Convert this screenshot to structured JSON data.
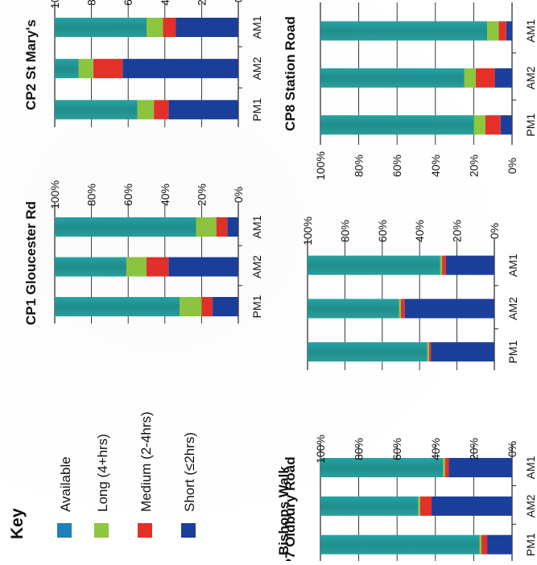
{
  "key": {
    "title": "Key",
    "items": [
      {
        "label": "Available",
        "color": "#1f7fb8"
      },
      {
        "label": "Long  (4+hrs)",
        "color": "#8dc63f"
      },
      {
        "label": "Medium (2-4hrs)",
        "color": "#e3312a"
      },
      {
        "label": "Short (≤2hrs)",
        "color": "#1b3f9a"
      }
    ]
  },
  "chart_data": [
    {
      "type": "bar",
      "stacked": true,
      "title": "CP1 Gloucester Rd",
      "categories": [
        "AM1",
        "AM2",
        "PM1"
      ],
      "ylim": [
        0,
        100
      ],
      "yticks": [
        "0%",
        "20%",
        "40%",
        "60%",
        "80%",
        "100%"
      ],
      "series": [
        {
          "name": "Short (≤2hrs)",
          "color": "#1b3f9a",
          "values": [
            6,
            38,
            14
          ]
        },
        {
          "name": "Medium (2-4hrs)",
          "color": "#e3312a",
          "values": [
            6,
            12,
            6
          ]
        },
        {
          "name": "Long  (4+hrs)",
          "color": "#8dc63f",
          "values": [
            11,
            11,
            12
          ]
        },
        {
          "name": "Available",
          "color": "#1f7fb8",
          "values": [
            77,
            39,
            68
          ]
        }
      ]
    },
    {
      "type": "bar",
      "stacked": true,
      "title": "CP2 St Mary's",
      "categories": [
        "AM1",
        "AM2",
        "PM1"
      ],
      "ylim": [
        0,
        100
      ],
      "yticks": [
        "0%",
        "20%",
        "40%",
        "60%",
        "80%",
        "100%"
      ],
      "series": [
        {
          "name": "Short (≤2hrs)",
          "color": "#1b3f9a",
          "values": [
            34,
            63,
            38
          ]
        },
        {
          "name": "Medium (2-4hrs)",
          "color": "#e3312a",
          "values": [
            7,
            16,
            8
          ]
        },
        {
          "name": "Long  (4+hrs)",
          "color": "#8dc63f",
          "values": [
            9,
            8,
            9
          ]
        },
        {
          "name": "Available",
          "color": "#1f7fb8",
          "values": [
            50,
            13,
            45
          ]
        }
      ]
    },
    {
      "type": "bar",
      "stacked": true,
      "title": "Bishops Walk",
      "categories": [
        "AM1",
        "AM2",
        "PM1"
      ],
      "ylim": [
        0,
        100
      ],
      "yticks": [
        "0%",
        "20%",
        "40%",
        "60%",
        "80%",
        "100%"
      ],
      "series": [
        {
          "name": "Short (≤2hrs)",
          "color": "#1b3f9a",
          "values": [
            26,
            48,
            34
          ]
        },
        {
          "name": "Medium (2-4hrs)",
          "color": "#e3312a",
          "values": [
            2,
            2,
            1
          ]
        },
        {
          "name": "Long  (4+hrs)",
          "color": "#8dc63f",
          "values": [
            1,
            1,
            1
          ]
        },
        {
          "name": "Available",
          "color": "#1f7fb8",
          "values": [
            71,
            49,
            64
          ]
        }
      ]
    },
    {
      "type": "bar",
      "stacked": true,
      "title": "CP7 Oldbury Road",
      "categories": [
        "AM1",
        "AM2",
        "PM1"
      ],
      "ylim": [
        0,
        100
      ],
      "yticks": [
        "0%",
        "20%",
        "40%",
        "60%",
        "80%",
        "100%"
      ],
      "series": [
        {
          "name": "Short (≤2hrs)",
          "color": "#1b3f9a",
          "values": [
            33,
            42,
            13
          ]
        },
        {
          "name": "Medium (2-4hrs)",
          "color": "#e3312a",
          "values": [
            2,
            6,
            3
          ]
        },
        {
          "name": "Long  (4+hrs)",
          "color": "#8dc63f",
          "values": [
            1,
            1,
            1
          ]
        },
        {
          "name": "Available",
          "color": "#1f7fb8",
          "values": [
            64,
            51,
            83
          ]
        }
      ]
    },
    {
      "type": "bar",
      "stacked": true,
      "title": "CP8 Station Road",
      "categories": [
        "AM1",
        "AM2",
        "PM1"
      ],
      "ylim": [
        0,
        100
      ],
      "yticks": [
        "0%",
        "20%",
        "40%",
        "60%",
        "80%",
        "100%"
      ],
      "series": [
        {
          "name": "Short (≤2hrs)",
          "color": "#1b3f9a",
          "values": [
            3,
            9,
            6
          ]
        },
        {
          "name": "Medium (2-4hrs)",
          "color": "#e3312a",
          "values": [
            4,
            10,
            8
          ]
        },
        {
          "name": "Long  (4+hrs)",
          "color": "#8dc63f",
          "values": [
            6,
            6,
            6
          ]
        },
        {
          "name": "Available",
          "color": "#1f7fb8",
          "values": [
            87,
            75,
            80
          ]
        }
      ]
    }
  ]
}
